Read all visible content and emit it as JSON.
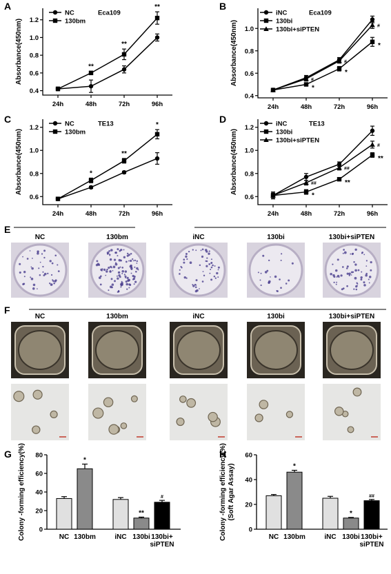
{
  "panels": {
    "A": {
      "letter": "A",
      "title": "Eca109",
      "ylabel": "Absorbance(450nm)",
      "categories": [
        "24h",
        "48h",
        "72h",
        "96h"
      ],
      "yticks": [
        "0.4",
        "0.6",
        "0.8",
        "1.0",
        "1.2"
      ],
      "ylim": [
        0.35,
        1.33
      ],
      "series": [
        {
          "name": "NC",
          "marker": "circle",
          "values": [
            0.42,
            0.45,
            0.64,
            1.0
          ],
          "err": [
            0.02,
            0.07,
            0.04,
            0.04
          ]
        },
        {
          "name": "130bm",
          "marker": "square",
          "values": [
            0.42,
            0.6,
            0.81,
            1.22
          ],
          "err": [
            0.02,
            0.02,
            0.06,
            0.07
          ]
        }
      ],
      "stars": [
        "",
        "**",
        "**",
        "**"
      ]
    },
    "B": {
      "letter": "B",
      "title": "Eca109",
      "ylabel": "Absorbance(450nm)",
      "categories": [
        "24h",
        "48h",
        "72h",
        "96h"
      ],
      "yticks": [
        "0.4",
        "0.6",
        "0.8",
        "1.0"
      ],
      "ylim": [
        0.38,
        1.18
      ],
      "series": [
        {
          "name": "iNC",
          "marker": "circle",
          "values": [
            0.45,
            0.56,
            0.72,
            1.08
          ],
          "err": [
            0.01,
            0.02,
            0.02,
            0.03
          ]
        },
        {
          "name": "130bi",
          "marker": "square",
          "values": [
            0.45,
            0.5,
            0.64,
            0.88
          ],
          "err": [
            0.01,
            0.01,
            0.02,
            0.04
          ]
        },
        {
          "name": "130bi+siPTEN",
          "marker": "triangle",
          "values": [
            0.45,
            0.55,
            0.71,
            1.03
          ],
          "err": [
            0.01,
            0.02,
            0.02,
            0.03
          ]
        }
      ],
      "stars_lower": [
        "",
        "*",
        "*",
        "*"
      ],
      "stars_upper": [
        "",
        "#",
        "#",
        "#"
      ]
    },
    "C": {
      "letter": "C",
      "title": "TE13",
      "ylabel": "Absorbance(450nm)",
      "categories": [
        "24h",
        "48h",
        "72h",
        "96h"
      ],
      "yticks": [
        "0.6",
        "0.8",
        "1.0",
        "1.2"
      ],
      "ylim": [
        0.53,
        1.27
      ],
      "series": [
        {
          "name": "NC",
          "marker": "circle",
          "values": [
            0.58,
            0.68,
            0.81,
            0.93
          ],
          "err": [
            0.01,
            0.01,
            0.01,
            0.05
          ]
        },
        {
          "name": "130bm",
          "marker": "square",
          "values": [
            0.58,
            0.74,
            0.91,
            1.14
          ],
          "err": [
            0.01,
            0.02,
            0.02,
            0.04
          ]
        }
      ],
      "stars": [
        "",
        "*",
        "**",
        "*"
      ]
    },
    "D": {
      "letter": "D",
      "title": "TE13",
      "ylabel": "Absorbance(450nm)",
      "categories": [
        "24h",
        "48h",
        "72h",
        "96h"
      ],
      "yticks": [
        "0.6",
        "0.8",
        "1.0",
        "1.2"
      ],
      "ylim": [
        0.53,
        1.27
      ],
      "series": [
        {
          "name": "iNC",
          "marker": "circle",
          "values": [
            0.61,
            0.77,
            0.88,
            1.17
          ],
          "err": [
            0.03,
            0.03,
            0.02,
            0.04
          ]
        },
        {
          "name": "130bi",
          "marker": "square",
          "values": [
            0.61,
            0.64,
            0.75,
            0.96
          ],
          "err": [
            0.02,
            0.02,
            0.01,
            0.02
          ]
        },
        {
          "name": "130bi+siPTEN",
          "marker": "triangle",
          "values": [
            0.61,
            0.72,
            0.85,
            1.05
          ],
          "err": [
            0.02,
            0.02,
            0.02,
            0.03
          ]
        }
      ],
      "stars_lower": [
        "",
        "*",
        "**",
        "**"
      ],
      "stars_upper": [
        "",
        "##",
        "##",
        "#"
      ]
    }
  },
  "photos": {
    "E": {
      "letter": "E",
      "labels": [
        "NC",
        "130bm",
        "iNC",
        "130bi",
        "130bi+siPTEN"
      ],
      "colony_density": [
        45,
        110,
        55,
        22,
        60
      ]
    },
    "F": {
      "letter": "F",
      "labels": [
        "NC",
        "130bm",
        "iNC",
        "130bi",
        "130bi+siPTEN"
      ],
      "clusters": [
        4,
        6,
        5,
        3,
        4
      ]
    }
  },
  "bars": {
    "G": {
      "letter": "G",
      "ylabel": "Colony -forming efficiency(%)",
      "yticks": [
        "0",
        "20",
        "40",
        "60",
        "80"
      ],
      "ylim": [
        0,
        80
      ],
      "categories": [
        "NC",
        "130bm",
        "iNC",
        "130bi",
        "130bi+\nsiPTEN"
      ],
      "values": [
        33,
        65,
        32,
        12,
        29
      ],
      "err": [
        2,
        5,
        2,
        1,
        2
      ],
      "stars": [
        "",
        "*",
        "",
        "**",
        "#"
      ],
      "colors": [
        "#e0e0e0",
        "#8a8a8a",
        "#e0e0e0",
        "#8a8a8a",
        "#000000"
      ]
    },
    "H": {
      "letter": "H",
      "ylabel": "Colony -forming efficiency(%)",
      "ylabel2": "(Soft Agar Assay)",
      "yticks": [
        "0",
        "20",
        "40",
        "60"
      ],
      "ylim": [
        0,
        60
      ],
      "categories": [
        "NC",
        "130bm",
        "iNC",
        "130bi",
        "130bi+\nsiPTEN"
      ],
      "values": [
        27,
        46,
        25,
        9,
        23
      ],
      "err": [
        1,
        1.5,
        1.5,
        0.5,
        1
      ],
      "stars": [
        "",
        "*",
        "",
        "*",
        "##"
      ],
      "colors": [
        "#e0e0e0",
        "#8a8a8a",
        "#e0e0e0",
        "#8a8a8a",
        "#000000"
      ]
    }
  }
}
